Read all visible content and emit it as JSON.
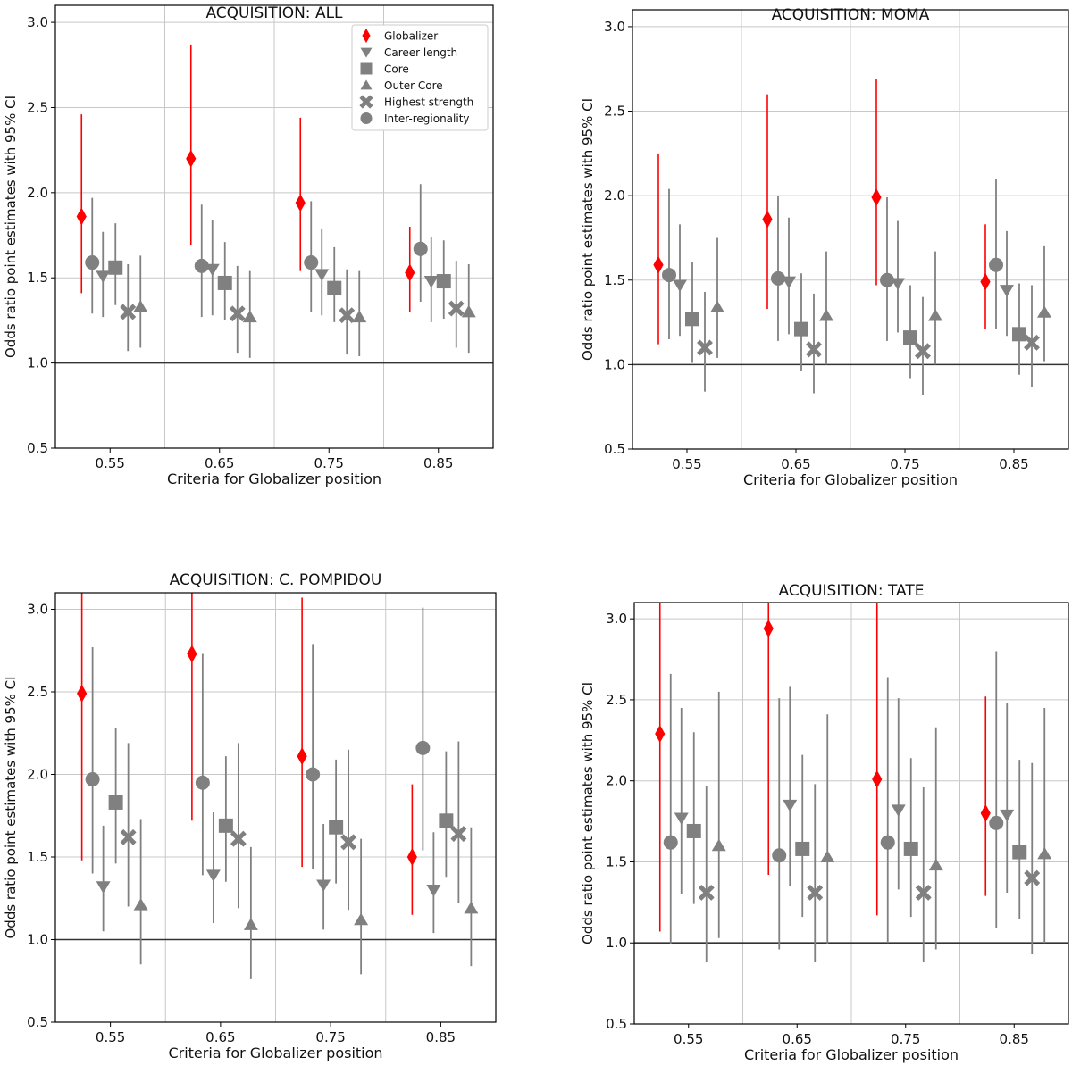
{
  "chart_data": [
    {
      "type": "scatter",
      "title": "ACQUISITION: ALL",
      "xlabel": "Criteria for Globalizer position",
      "ylabel": "Odds ratio point estimates with 95% CI",
      "categories": [
        "0.55",
        "0.65",
        "0.75",
        "0.85"
      ],
      "ylim": [
        0.5,
        3.1
      ],
      "yticks": [
        0.5,
        1.0,
        1.5,
        2.0,
        2.5,
        3.0
      ],
      "ytick_labels": [
        "0.5",
        "1.0",
        "1.5",
        "2.0",
        "2.5",
        "3.0"
      ],
      "reference_line": 1.0,
      "grid": true,
      "legend": "top-right",
      "series": [
        {
          "name": "Globalizer",
          "marker": "diamond",
          "color": "#ff0000",
          "values": [
            1.86,
            2.2,
            1.94,
            1.53
          ],
          "ci_low": [
            1.41,
            1.69,
            1.54,
            1.3
          ],
          "ci_high": [
            2.46,
            2.87,
            2.44,
            1.8
          ]
        },
        {
          "name": "Inter-regionality",
          "marker": "circle",
          "color": "#808080",
          "values": [
            1.59,
            1.57,
            1.59,
            1.67
          ],
          "ci_low": [
            1.29,
            1.27,
            1.3,
            1.36
          ],
          "ci_high": [
            1.97,
            1.93,
            1.95,
            2.05
          ]
        },
        {
          "name": "Career length",
          "marker": "triangle-down",
          "color": "#808080",
          "values": [
            1.51,
            1.55,
            1.52,
            1.48
          ],
          "ci_low": [
            1.27,
            1.28,
            1.28,
            1.24
          ],
          "ci_high": [
            1.77,
            1.84,
            1.79,
            1.74
          ]
        },
        {
          "name": "Core",
          "marker": "square",
          "color": "#808080",
          "values": [
            1.56,
            1.47,
            1.44,
            1.48
          ],
          "ci_low": [
            1.34,
            1.25,
            1.24,
            1.26
          ],
          "ci_high": [
            1.82,
            1.71,
            1.68,
            1.72
          ]
        },
        {
          "name": "Highest strength",
          "marker": "x",
          "color": "#808080",
          "values": [
            1.3,
            1.29,
            1.28,
            1.32
          ],
          "ci_low": [
            1.07,
            1.06,
            1.05,
            1.09
          ],
          "ci_high": [
            1.58,
            1.57,
            1.55,
            1.6
          ]
        },
        {
          "name": "Outer Core",
          "marker": "triangle-up",
          "color": "#808080",
          "values": [
            1.33,
            1.27,
            1.27,
            1.3
          ],
          "ci_low": [
            1.09,
            1.03,
            1.04,
            1.06
          ],
          "ci_high": [
            1.63,
            1.54,
            1.54,
            1.58
          ]
        }
      ]
    },
    {
      "type": "scatter",
      "title": "ACQUISITION: MOMA",
      "xlabel": "Criteria for Globalizer position",
      "ylabel": "Odds ratio point estimates with 95% CI",
      "categories": [
        "0.55",
        "0.65",
        "0.75",
        "0.85"
      ],
      "ylim": [
        0.5,
        3.1
      ],
      "yticks": [
        0.5,
        1.0,
        1.5,
        2.0,
        2.5,
        3.0
      ],
      "ytick_labels": [
        "0.5",
        "1.0",
        "1.5",
        "2.0",
        "2.5",
        "3.0"
      ],
      "reference_line": 1.0,
      "grid": true,
      "series": [
        {
          "name": "Globalizer",
          "marker": "diamond",
          "color": "#ff0000",
          "values": [
            1.59,
            1.86,
            1.99,
            1.49
          ],
          "ci_low": [
            1.12,
            1.33,
            1.47,
            1.21
          ],
          "ci_high": [
            2.25,
            2.6,
            2.69,
            1.83
          ]
        },
        {
          "name": "Inter-regionality",
          "marker": "circle",
          "color": "#808080",
          "values": [
            1.53,
            1.51,
            1.5,
            1.59
          ],
          "ci_low": [
            1.15,
            1.14,
            1.14,
            1.21
          ],
          "ci_high": [
            2.04,
            2.0,
            1.99,
            2.1
          ]
        },
        {
          "name": "Career length",
          "marker": "triangle-down",
          "color": "#808080",
          "values": [
            1.47,
            1.49,
            1.48,
            1.44
          ],
          "ci_low": [
            1.17,
            1.18,
            1.19,
            1.17
          ],
          "ci_high": [
            1.83,
            1.87,
            1.85,
            1.79
          ]
        },
        {
          "name": "Core",
          "marker": "square",
          "color": "#808080",
          "values": [
            1.27,
            1.21,
            1.16,
            1.18
          ],
          "ci_low": [
            1.01,
            0.96,
            0.92,
            0.94
          ],
          "ci_high": [
            1.61,
            1.54,
            1.47,
            1.48
          ]
        },
        {
          "name": "Highest strength",
          "marker": "x",
          "color": "#808080",
          "values": [
            1.1,
            1.09,
            1.08,
            1.13
          ],
          "ci_low": [
            0.84,
            0.83,
            0.82,
            0.87
          ],
          "ci_high": [
            1.43,
            1.42,
            1.4,
            1.47
          ]
        },
        {
          "name": "Outer Core",
          "marker": "triangle-up",
          "color": "#808080",
          "values": [
            1.34,
            1.29,
            1.29,
            1.31
          ],
          "ci_low": [
            1.04,
            1.0,
            1.0,
            1.02
          ],
          "ci_high": [
            1.75,
            1.67,
            1.67,
            1.7
          ]
        }
      ]
    },
    {
      "type": "scatter",
      "title": "ACQUISITION: C. POMPIDOU",
      "xlabel": "Criteria for Globalizer position",
      "ylabel": "Odds ratio point estimates with 95% CI",
      "categories": [
        "0.55",
        "0.65",
        "0.75",
        "0.85"
      ],
      "ylim": [
        0.5,
        3.1
      ],
      "yticks": [
        0.5,
        1.0,
        1.5,
        2.0,
        2.5,
        3.0
      ],
      "ytick_labels": [
        "0.5",
        "1.0",
        "1.5",
        "2.0",
        "2.5",
        "3.0"
      ],
      "reference_line": 1.0,
      "grid": true,
      "series": [
        {
          "name": "Globalizer",
          "marker": "diamond",
          "color": "#ff0000",
          "values": [
            2.49,
            2.73,
            2.11,
            1.5
          ],
          "ci_low": [
            1.48,
            1.72,
            1.44,
            1.15
          ],
          "ci_high": [
            3.1,
            3.1,
            3.07,
            1.94
          ]
        },
        {
          "name": "Inter-regionality",
          "marker": "circle",
          "color": "#808080",
          "values": [
            1.97,
            1.95,
            2.0,
            2.16
          ],
          "ci_low": [
            1.4,
            1.39,
            1.43,
            1.54
          ],
          "ci_high": [
            2.77,
            2.73,
            2.79,
            3.01
          ]
        },
        {
          "name": "Career length",
          "marker": "triangle-down",
          "color": "#808080",
          "values": [
            1.32,
            1.39,
            1.33,
            1.3
          ],
          "ci_low": [
            1.05,
            1.1,
            1.06,
            1.04
          ],
          "ci_high": [
            1.69,
            1.77,
            1.7,
            1.65
          ]
        },
        {
          "name": "Core",
          "marker": "square",
          "color": "#808080",
          "values": [
            1.83,
            1.69,
            1.68,
            1.72
          ],
          "ci_low": [
            1.46,
            1.35,
            1.34,
            1.38
          ],
          "ci_high": [
            2.28,
            2.11,
            2.09,
            2.14
          ]
        },
        {
          "name": "Highest strength",
          "marker": "x",
          "color": "#808080",
          "values": [
            1.62,
            1.61,
            1.59,
            1.64
          ],
          "ci_low": [
            1.2,
            1.19,
            1.18,
            1.22
          ],
          "ci_high": [
            2.19,
            2.19,
            2.15,
            2.2
          ]
        },
        {
          "name": "Outer Core",
          "marker": "triangle-up",
          "color": "#808080",
          "values": [
            1.21,
            1.09,
            1.12,
            1.19
          ],
          "ci_low": [
            0.85,
            0.76,
            0.79,
            0.84
          ],
          "ci_high": [
            1.73,
            1.56,
            1.61,
            1.68
          ]
        }
      ]
    },
    {
      "type": "scatter",
      "title": "ACQUISITION: TATE",
      "xlabel": "Criteria for Globalizer position",
      "ylabel": "Odds ratio point estimates with 95% CI",
      "categories": [
        "0.55",
        "0.65",
        "0.75",
        "0.85"
      ],
      "ylim": [
        0.5,
        3.1
      ],
      "yticks": [
        0.5,
        1.0,
        1.5,
        2.0,
        2.5,
        3.0
      ],
      "ytick_labels": [
        "0.5",
        "1.0",
        "1.5",
        "2.0",
        "2.5",
        "3.0"
      ],
      "reference_line": 1.0,
      "grid": true,
      "series": [
        {
          "name": "Globalizer",
          "marker": "diamond",
          "color": "#ff0000",
          "values": [
            2.29,
            2.94,
            2.01,
            1.8
          ],
          "ci_low": [
            1.07,
            1.42,
            1.17,
            1.29
          ],
          "ci_high": [
            3.1,
            3.1,
            3.1,
            2.52
          ]
        },
        {
          "name": "Inter-regionality",
          "marker": "circle",
          "color": "#808080",
          "values": [
            1.62,
            1.54,
            1.62,
            1.74
          ],
          "ci_low": [
            0.99,
            0.96,
            1.0,
            1.09
          ],
          "ci_high": [
            2.66,
            2.51,
            2.64,
            2.8
          ]
        },
        {
          "name": "Career length",
          "marker": "triangle-down",
          "color": "#808080",
          "values": [
            1.77,
            1.85,
            1.82,
            1.79
          ],
          "ci_low": [
            1.3,
            1.35,
            1.33,
            1.31
          ],
          "ci_high": [
            2.45,
            2.58,
            2.51,
            2.48
          ]
        },
        {
          "name": "Core",
          "marker": "square",
          "color": "#808080",
          "values": [
            1.69,
            1.58,
            1.58,
            1.56
          ],
          "ci_low": [
            1.24,
            1.16,
            1.16,
            1.15
          ],
          "ci_high": [
            2.3,
            2.16,
            2.14,
            2.13
          ]
        },
        {
          "name": "Highest strength",
          "marker": "x",
          "color": "#808080",
          "values": [
            1.31,
            1.31,
            1.31,
            1.4
          ],
          "ci_low": [
            0.88,
            0.88,
            0.88,
            0.93
          ],
          "ci_high": [
            1.97,
            1.98,
            1.96,
            2.11
          ]
        },
        {
          "name": "Outer Core",
          "marker": "triangle-up",
          "color": "#808080",
          "values": [
            1.6,
            1.53,
            1.48,
            1.55
          ],
          "ci_low": [
            1.03,
            0.99,
            0.96,
            1.0
          ],
          "ci_high": [
            2.55,
            2.41,
            2.33,
            2.45
          ]
        }
      ]
    }
  ]
}
